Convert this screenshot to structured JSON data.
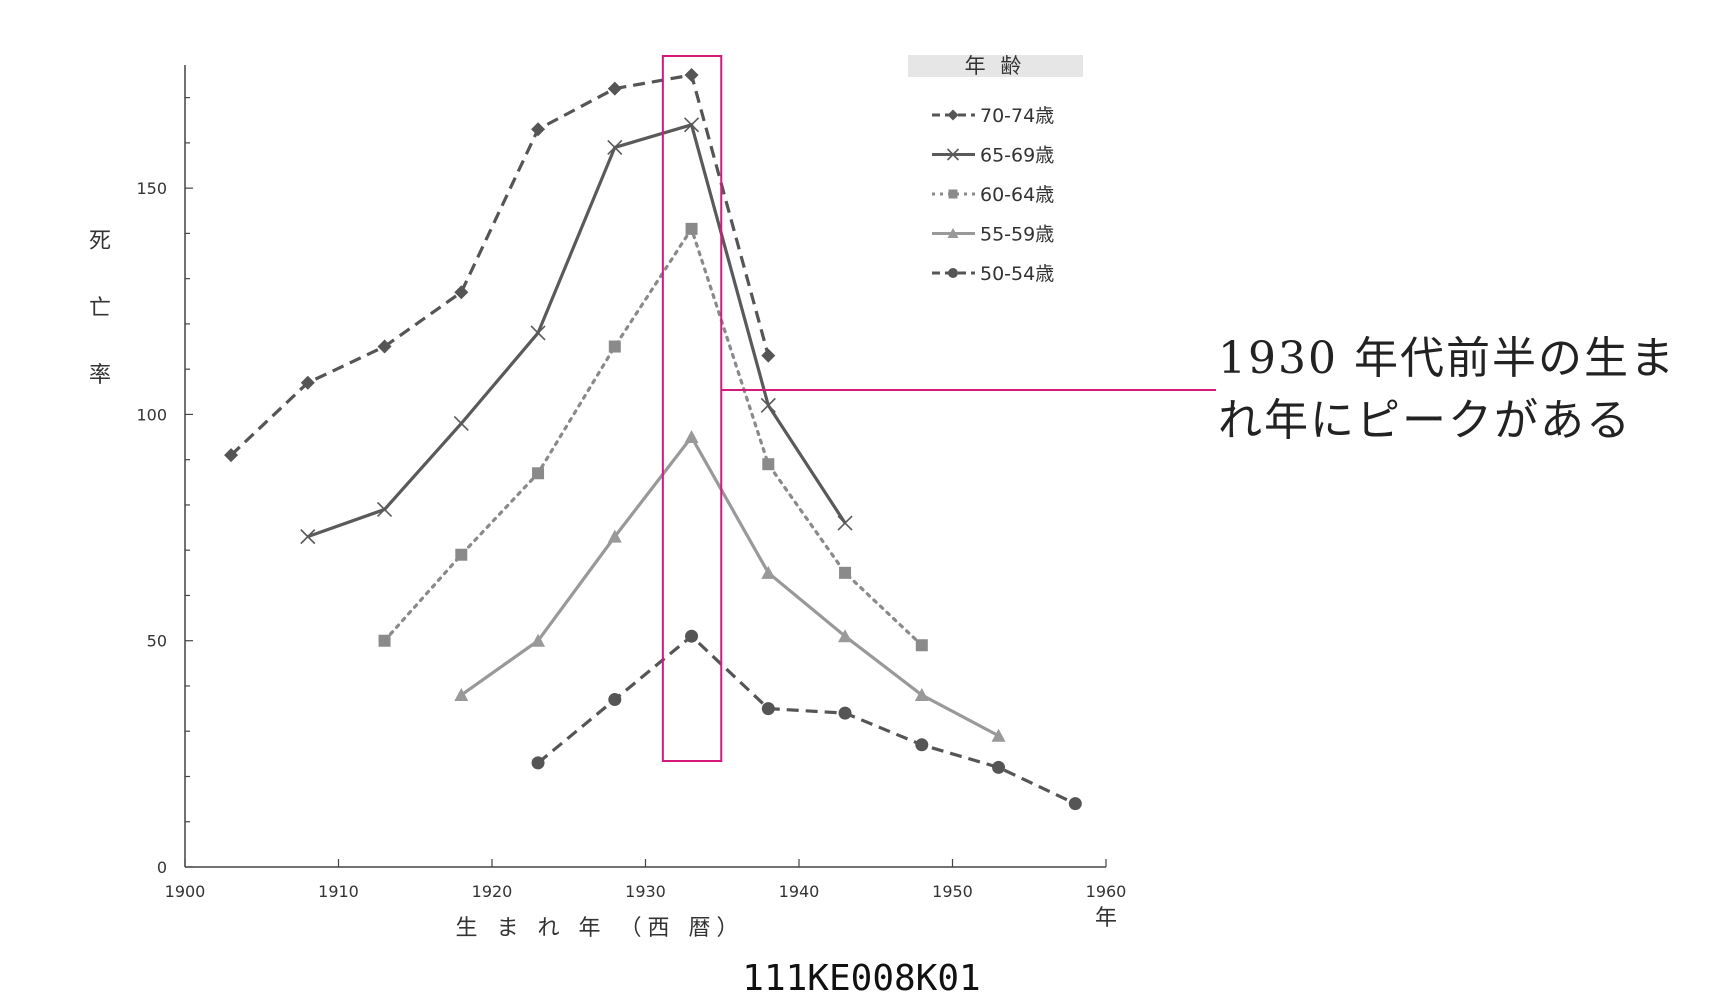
{
  "chart_data": {
    "type": "line",
    "xlabel": "生 ま れ 年 （西 暦）",
    "x_unit": "年",
    "ylabel": "死 亡 率",
    "xlim": [
      1900,
      1960
    ],
    "ylim": [
      0,
      175
    ],
    "x_ticks": [
      1900,
      1910,
      1920,
      1930,
      1940,
      1950,
      1960
    ],
    "y_ticks": [
      0,
      50,
      100,
      150
    ],
    "legend_title": "年 齢",
    "legend_position": "top-right",
    "grid": false,
    "series": [
      {
        "name": "70-74歳",
        "style": "dashed",
        "marker": "diamond",
        "color": "#555555",
        "x": [
          1903,
          1908,
          1913,
          1918,
          1923,
          1928,
          1933,
          1938
        ],
        "y": [
          91,
          107,
          115,
          127,
          163,
          172,
          175,
          113
        ]
      },
      {
        "name": "65-69歳",
        "style": "solid",
        "marker": "x",
        "color": "#5a5a5a",
        "x": [
          1908,
          1913,
          1918,
          1923,
          1928,
          1933,
          1938,
          1943
        ],
        "y": [
          73,
          79,
          98,
          118,
          159,
          164,
          102,
          76
        ]
      },
      {
        "name": "60-64歳",
        "style": "dotted",
        "marker": "square",
        "color": "#8a8a8a",
        "x": [
          1913,
          1918,
          1923,
          1928,
          1933,
          1938,
          1943,
          1948
        ],
        "y": [
          50,
          69,
          87,
          115,
          141,
          89,
          65,
          49
        ]
      },
      {
        "name": "55-59歳",
        "style": "solid",
        "marker": "triangle",
        "color": "#999999",
        "x": [
          1918,
          1923,
          1928,
          1933,
          1938,
          1943,
          1948,
          1953
        ],
        "y": [
          38,
          50,
          73,
          95,
          65,
          51,
          38,
          29
        ]
      },
      {
        "name": "50-54歳",
        "style": "dashed",
        "marker": "circle",
        "color": "#555555",
        "x": [
          1923,
          1928,
          1933,
          1938,
          1943,
          1948,
          1953,
          1958
        ],
        "y": [
          23,
          37,
          51,
          35,
          34,
          27,
          22,
          14
        ]
      }
    ],
    "highlight": {
      "x_from": 1931,
      "x_to": 1935,
      "color": "#d4187c"
    }
  },
  "annotation": {
    "lines": [
      "1930 年代前半の生ま",
      "れ年にピークがある"
    ],
    "color": "#d4187c"
  },
  "code_label": "111KE008K01"
}
